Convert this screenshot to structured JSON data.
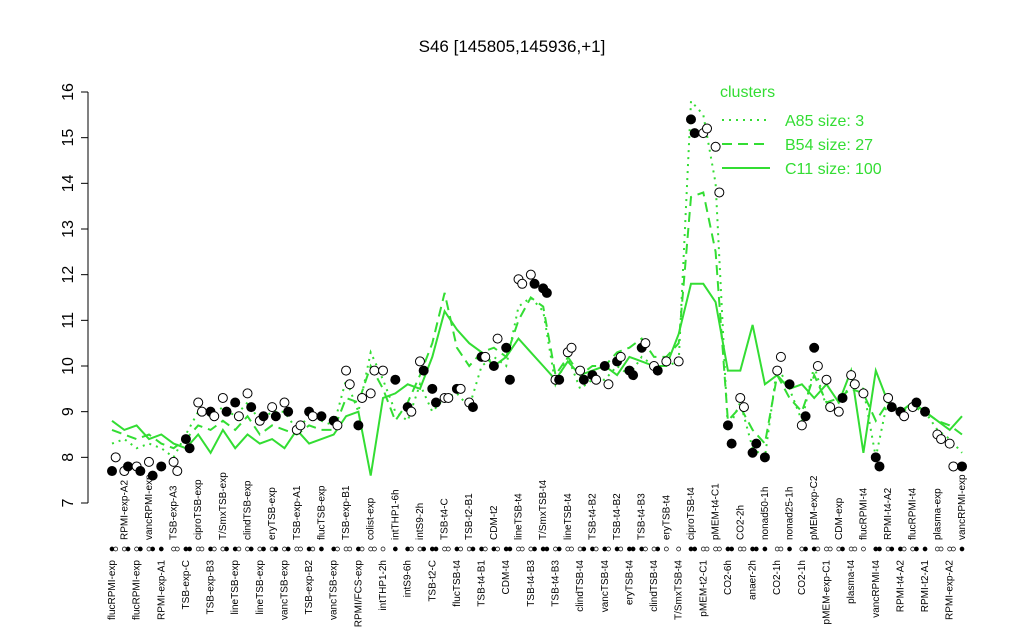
{
  "chart_data": {
    "type": "line",
    "title": "S46 [145805,145936,+1]",
    "ylim": [
      7,
      16
    ],
    "yticks": [
      7,
      8,
      9,
      10,
      11,
      12,
      13,
      14,
      15,
      16
    ],
    "legend_title": "clusters",
    "legend_position": "top-right",
    "categories": [
      "flucRPMI-exp",
      "RPMI-exp-A2",
      "flucRPMI-exp",
      "vancRPMI-exp",
      "RPMI-exp-A1",
      "TSB-exp-A3",
      "TSB-exp-C",
      "ciproTSB-exp",
      "TSB-exp-B3",
      "T/SmxTSB-exp",
      "lineTSB-exp",
      "clindTSB-exp",
      "lineTSB-exp",
      "eryTSB-exp",
      "vancTSB-exp",
      "TSB-exp-A1",
      "TSB-exp-B2",
      "flucTSB-exp",
      "vancTSB-exp",
      "TSB-exp-B1",
      "RPMI/FCS-exp",
      "colist-exp",
      "intTHP1-2h",
      "intTHP1-6h",
      "intS9-6h",
      "intS9-2h",
      "TSB-t2-C",
      "TSB-t4-C",
      "flucTSB-t4",
      "TSB-t2-B1",
      "TSB-t4-B1",
      "CDM-t2",
      "CDM-t4",
      "lineTSB-t4",
      "TSB-t4-B3",
      "T/SmxTSB-t4",
      "TSB-t4-B3",
      "lineTSB-t4",
      "clindTSB-t4",
      "TSB-t4-B2",
      "vancTSB-t4",
      "TSB-t4-B2",
      "eryTSB-t4",
      "TSB-t4-B3",
      "clindTSB-t4",
      "eryTSB-t4",
      "T/SmxTSB-t4",
      "ciproTSB-t4",
      "pMEM-t2-C1",
      "pMEM-t4-C1",
      "CO2-6h",
      "CO2-2h",
      "anaer-2h",
      "nonad50-1h",
      "CO2-1h",
      "nonad25-1h",
      "CO2-1h",
      "pMEM-exp-C2",
      "pMEM-exp-C1",
      "CDM-exp",
      "plasma-t4",
      "flucRPMI-t4",
      "vancRPMI-t4",
      "RPMI-t4-A2",
      "RPMI-t4-A2",
      "flucRPMI-t4",
      "RPMI-t2-A1",
      "plasma-exp",
      "RPMI-exp-A2",
      "vancRPMI-exp"
    ],
    "series": [
      {
        "name": "A85 size: 3",
        "color": "#33dd33",
        "style": "dotted",
        "values": [
          8.3,
          8.4,
          8.2,
          8.3,
          8.2,
          8.0,
          8.5,
          9.0,
          8.9,
          9.1,
          8.9,
          9.2,
          8.8,
          9.0,
          9.0,
          8.6,
          8.9,
          8.8,
          8.7,
          9.7,
          9.0,
          10.3,
          9.7,
          9.0,
          8.8,
          9.6,
          9.0,
          9.3,
          9.4,
          9.1,
          10.0,
          10.2,
          10.0,
          11.3,
          11.5,
          11.2,
          9.6,
          10.2,
          9.5,
          9.7,
          9.7,
          10.0,
          9.8,
          10.2,
          10.0,
          10.0,
          10.1,
          15.8,
          15.5,
          14.0,
          8.6,
          9.2,
          8.2,
          8.0,
          10.0,
          9.5,
          8.8,
          10.0,
          9.1,
          9.2,
          9.6,
          9.5,
          8.0,
          9.3,
          9.0,
          9.1,
          9.0,
          8.6,
          8.4,
          8.1
        ]
      },
      {
        "name": "B54 size: 27",
        "color": "#33dd33",
        "style": "dashed",
        "values": [
          8.6,
          8.5,
          8.4,
          8.5,
          8.3,
          8.2,
          8.4,
          8.7,
          8.6,
          8.8,
          8.6,
          8.9,
          8.5,
          8.7,
          8.6,
          8.5,
          8.7,
          8.6,
          8.6,
          9.3,
          9.2,
          10.0,
          9.5,
          8.8,
          9.2,
          9.8,
          10.5,
          11.6,
          10.4,
          10.0,
          10.3,
          10.4,
          10.2,
          11.0,
          11.5,
          11.3,
          9.8,
          10.2,
          9.8,
          10.0,
          10.0,
          10.3,
          10.4,
          10.6,
          10.2,
          10.2,
          10.5,
          13.7,
          13.8,
          12.5,
          8.8,
          9.1,
          8.6,
          8.3,
          9.8,
          9.3,
          9.0,
          9.8,
          9.2,
          9.3,
          9.5,
          9.4,
          8.8,
          9.2,
          9.0,
          9.2,
          9.0,
          8.8,
          8.7,
          8.5
        ]
      },
      {
        "name": "C11 size: 100",
        "color": "#33dd33",
        "style": "solid",
        "values": [
          8.8,
          8.6,
          8.7,
          8.4,
          8.5,
          8.3,
          8.2,
          8.5,
          8.1,
          8.6,
          8.2,
          8.5,
          8.3,
          8.4,
          8.2,
          8.6,
          8.3,
          8.4,
          8.5,
          8.9,
          9.0,
          7.6,
          9.3,
          9.4,
          9.6,
          9.5,
          10.2,
          11.2,
          10.8,
          10.5,
          10.3,
          10.0,
          10.2,
          10.6,
          10.3,
          10.0,
          9.7,
          10.1,
          9.8,
          9.9,
          10.0,
          9.8,
          10.2,
          10.1,
          10.0,
          10.0,
          10.7,
          11.8,
          11.8,
          11.4,
          9.9,
          9.9,
          10.9,
          9.6,
          9.8,
          9.5,
          9.6,
          9.3,
          9.6,
          9.2,
          9.9,
          8.1,
          9.9,
          9.2,
          9.0,
          9.2,
          9.0,
          8.8,
          8.6,
          8.9
        ]
      }
    ],
    "points": {
      "x": [
        0,
        0.3,
        1,
        1.3,
        2,
        2.3,
        3,
        3.3,
        4,
        5,
        5.3,
        6,
        6.3,
        7,
        7.3,
        8,
        8.3,
        9,
        9.3,
        10,
        10.3,
        11,
        11.3,
        12,
        12.3,
        13,
        13.3,
        14,
        14.3,
        15,
        15.3,
        16,
        16.3,
        17,
        18,
        18.3,
        19,
        19.3,
        20,
        20.3,
        21,
        21.3,
        22,
        23,
        24,
        24.3,
        25,
        25.3,
        26,
        26.3,
        27,
        27.3,
        28,
        28.3,
        29,
        29.3,
        30,
        30.3,
        31,
        31.3,
        32,
        32.3,
        33,
        33.3,
        34,
        34.3,
        35,
        35.3,
        36,
        36.3,
        37,
        37.3,
        38,
        38.3,
        39,
        39.3,
        40,
        40.3,
        41,
        41.3,
        42,
        42.3,
        43,
        43.3,
        44,
        44.3,
        45,
        46,
        47,
        47.3,
        48,
        48.3,
        49,
        49.3,
        50,
        50.3,
        51,
        51.3,
        52,
        52.3,
        53,
        54,
        54.3,
        55,
        56,
        56.3,
        57,
        57.3,
        58,
        58.3,
        59,
        59.3,
        60,
        60.3,
        61,
        62,
        62.3,
        63,
        63.3,
        64,
        64.3,
        65,
        65.3,
        66,
        67,
        67.3,
        68,
        68.3,
        69
      ],
      "values": [
        7.7,
        8.0,
        7.7,
        7.8,
        7.8,
        7.7,
        7.9,
        7.6,
        7.8,
        7.9,
        7.7,
        8.4,
        8.2,
        9.2,
        9.0,
        9.0,
        8.9,
        9.3,
        9.0,
        9.2,
        8.9,
        9.4,
        9.1,
        8.8,
        8.9,
        9.1,
        8.9,
        9.2,
        9.0,
        8.6,
        8.7,
        9.0,
        8.9,
        8.9,
        8.8,
        8.7,
        9.9,
        9.6,
        8.7,
        9.3,
        9.4,
        9.9,
        9.9,
        9.7,
        9.1,
        9.0,
        10.1,
        9.9,
        9.5,
        9.2,
        9.3,
        9.3,
        9.5,
        9.5,
        9.2,
        9.1,
        10.2,
        10.2,
        10.0,
        10.6,
        10.4,
        9.7,
        11.9,
        11.8,
        12.0,
        11.8,
        11.7,
        11.6,
        9.7,
        9.7,
        10.3,
        10.4,
        9.9,
        9.7,
        9.8,
        9.7,
        10.0,
        9.6,
        10.1,
        10.2,
        9.9,
        9.8,
        10.4,
        10.5,
        10.0,
        9.9,
        10.1,
        10.1,
        15.4,
        15.1,
        15.1,
        15.2,
        14.8,
        13.8,
        8.7,
        8.3,
        9.3,
        9.1,
        8.1,
        8.3,
        8.0,
        9.9,
        10.2,
        9.6,
        8.7,
        8.9,
        10.4,
        10.0,
        9.7,
        9.1,
        9.0,
        9.3,
        9.8,
        9.6,
        9.4,
        8.0,
        7.8,
        9.3,
        9.1,
        9.0,
        8.9,
        9.1,
        9.2,
        9.0,
        8.5,
        8.4,
        8.3,
        7.8,
        7.8
      ],
      "fills": [
        "#000",
        "#fff",
        "#fff",
        "#000",
        "#fff",
        "#000",
        "#fff",
        "#000",
        "#000",
        "#fff",
        "#fff",
        "#000",
        "#000",
        "#fff",
        "#fff",
        "#000",
        "#fff",
        "#fff",
        "#000",
        "#000",
        "#fff",
        "#fff",
        "#000",
        "#fff",
        "#000",
        "#fff",
        "#000",
        "#fff",
        "#000",
        "#fff",
        "#fff",
        "#000",
        "#fff",
        "#000",
        "#000",
        "#fff",
        "#fff",
        "#fff",
        "#000",
        "#fff",
        "#fff",
        "#fff",
        "#fff",
        "#000",
        "#000",
        "#fff",
        "#fff",
        "#000",
        "#000",
        "#000",
        "#fff",
        "#fff",
        "#000",
        "#fff",
        "#fff",
        "#000",
        "#000",
        "#fff",
        "#000",
        "#fff",
        "#000",
        "#000",
        "#fff",
        "#fff",
        "#fff",
        "#000",
        "#000",
        "#000",
        "#fff",
        "#000",
        "#fff",
        "#fff",
        "#fff",
        "#000",
        "#000",
        "#fff",
        "#000",
        "#fff",
        "#000",
        "#fff",
        "#000",
        "#000",
        "#000",
        "#fff",
        "#fff",
        "#000",
        "#fff",
        "#fff",
        "#000",
        "#000",
        "#fff",
        "#fff",
        "#fff",
        "#fff",
        "#000",
        "#000",
        "#fff",
        "#fff",
        "#000",
        "#000",
        "#000",
        "#fff",
        "#fff",
        "#000",
        "#fff",
        "#000",
        "#000",
        "#fff",
        "#fff",
        "#fff",
        "#fff",
        "#000",
        "#fff",
        "#fff",
        "#fff",
        "#000",
        "#000",
        "#fff",
        "#000",
        "#000",
        "#fff",
        "#fff",
        "#000",
        "#000",
        "#fff",
        "#fff",
        "#fff",
        "#fff",
        "#000"
      ]
    }
  }
}
